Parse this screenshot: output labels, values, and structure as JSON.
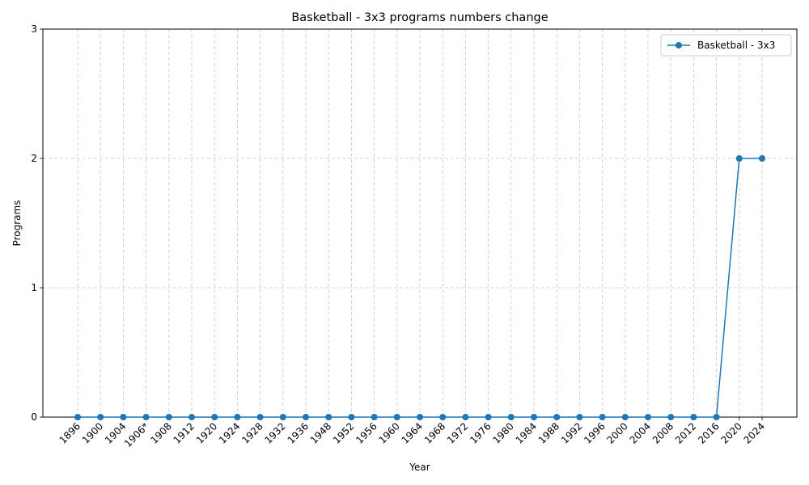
{
  "chart_data": {
    "type": "line",
    "title": "Basketball - 3x3 programs numbers change",
    "xlabel": "Year",
    "ylabel": "Programs",
    "categories": [
      "1896",
      "1900",
      "1904",
      "1906*",
      "1908",
      "1912",
      "1920",
      "1924",
      "1928",
      "1932",
      "1936",
      "1948",
      "1952",
      "1956",
      "1960",
      "1964",
      "1968",
      "1972",
      "1976",
      "1980",
      "1984",
      "1988",
      "1992",
      "1996",
      "2000",
      "2004",
      "2008",
      "2012",
      "2016",
      "2020",
      "2024"
    ],
    "series": [
      {
        "name": "Basketball - 3x3",
        "values": [
          0,
          0,
          0,
          0,
          0,
          0,
          0,
          0,
          0,
          0,
          0,
          0,
          0,
          0,
          0,
          0,
          0,
          0,
          0,
          0,
          0,
          0,
          0,
          0,
          0,
          0,
          0,
          0,
          0,
          2,
          2
        ],
        "color": "#1f77b4",
        "marker": "circle"
      }
    ],
    "ylim": [
      0,
      3
    ],
    "yticks": [
      0,
      1,
      2,
      3
    ],
    "grid": true,
    "legend_position": "top-right",
    "x_tick_rotation": 45
  }
}
